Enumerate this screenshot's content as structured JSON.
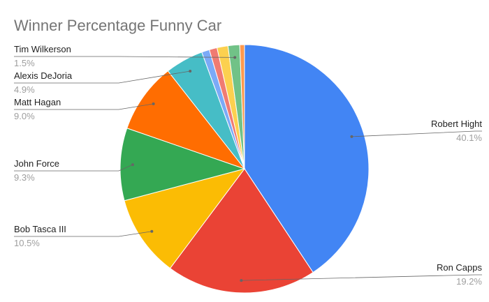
{
  "chart_data": {
    "type": "pie",
    "title": "Winner Percentage Funny Car",
    "unit": "%",
    "legend": "labels with leader lines",
    "slices": [
      {
        "label": "Robert Hight",
        "value": 40.1,
        "value_label": "40.1%",
        "color": "#4285f4"
      },
      {
        "label": "Ron Capps",
        "value": 19.2,
        "value_label": "19.2%",
        "color": "#ea4335"
      },
      {
        "label": "Bob Tasca III",
        "value": 10.5,
        "value_label": "10.5%",
        "color": "#fbbc04"
      },
      {
        "label": "John Force",
        "value": 9.3,
        "value_label": "9.3%",
        "color": "#34a853"
      },
      {
        "label": "Matt Hagan",
        "value": 9.0,
        "value_label": "9.0%",
        "color": "#ff6d01"
      },
      {
        "label": "Alexis DeJoria",
        "value": 4.9,
        "value_label": "4.9%",
        "color": "#46bdc6"
      },
      {
        "label": "",
        "value": 1.0,
        "value_label": "",
        "color": "#7baaf7"
      },
      {
        "label": "",
        "value": 1.0,
        "value_label": "",
        "color": "#f07b72"
      },
      {
        "label": "",
        "value": 1.4,
        "value_label": "",
        "color": "#fcd04f"
      },
      {
        "label": "Tim Wilkerson",
        "value": 1.5,
        "value_label": "1.5%",
        "color": "#71c287"
      },
      {
        "label": "",
        "value": 0.6,
        "value_label": "",
        "color": "#ff994d"
      }
    ]
  }
}
